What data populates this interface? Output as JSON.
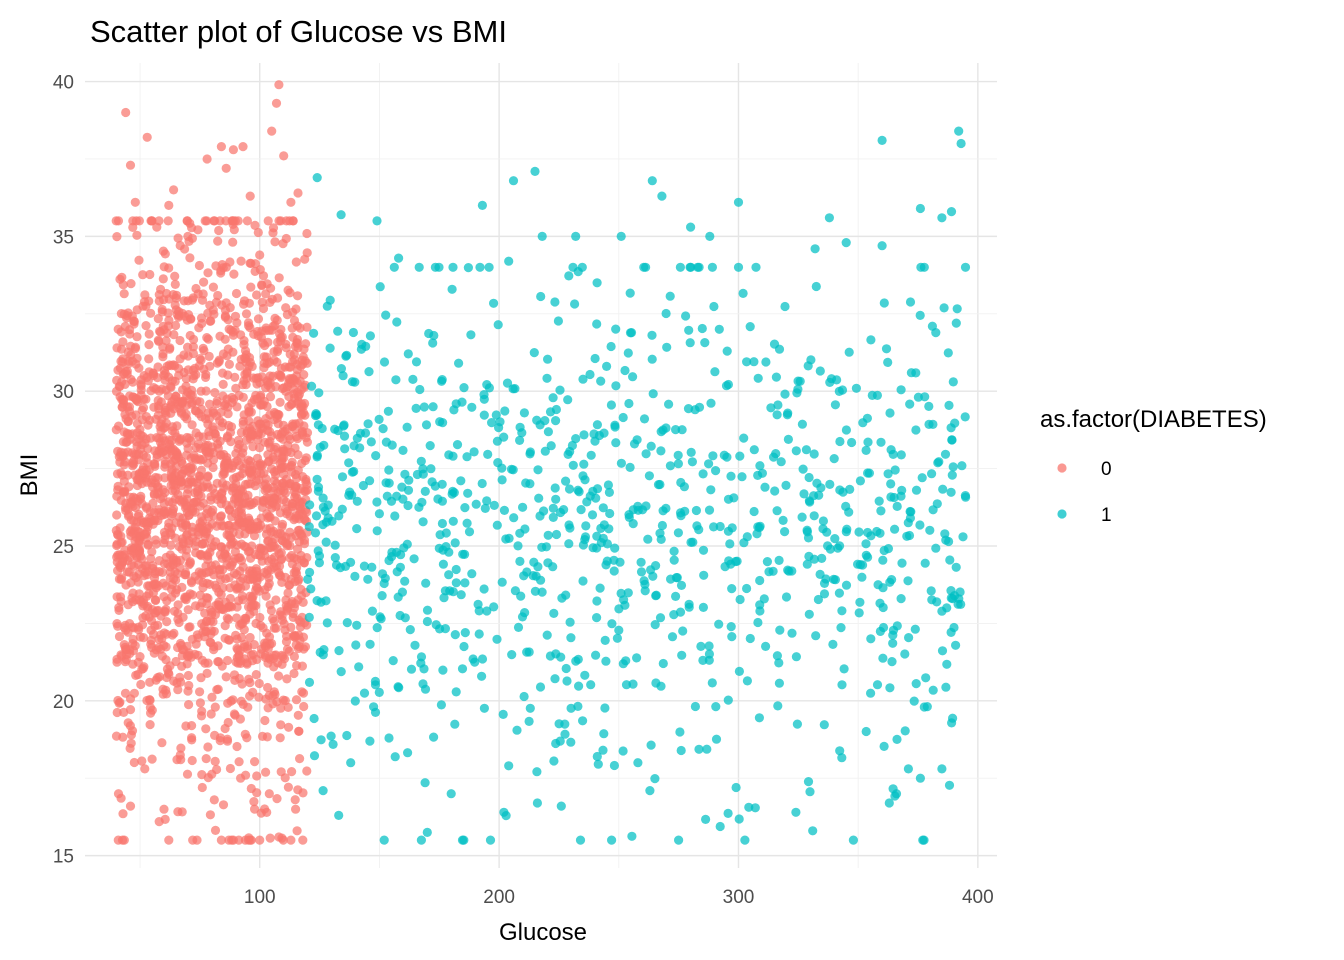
{
  "chart_data": {
    "type": "scatter",
    "title": "Scatter plot of Glucose vs BMI",
    "xlabel": "Glucose",
    "ylabel": "BMI",
    "xlim": [
      27,
      408
    ],
    "ylim": [
      14.6,
      40.6
    ],
    "x_ticks": [
      100,
      200,
      300,
      400
    ],
    "x_tick_labels": [
      "100",
      "200",
      "300",
      "400"
    ],
    "y_ticks": [
      15,
      20,
      25,
      30,
      35,
      40
    ],
    "y_tick_labels": [
      "15",
      "20",
      "25",
      "30",
      "35",
      "40"
    ],
    "grid": true,
    "legend": {
      "title": "as.factor(DIABETES)",
      "position": "right",
      "entries": [
        "0",
        "1"
      ]
    },
    "series": [
      {
        "name": "0",
        "color": "#F8766D",
        "x_range": [
          40,
          120
        ],
        "y_range": [
          15.5,
          40
        ],
        "approx_count": 2200,
        "points": [
          [
            44,
            39.0
          ],
          [
            108,
            39.9
          ],
          [
            107,
            39.3
          ],
          [
            53,
            38.2
          ],
          [
            93,
            37.9
          ],
          [
            89,
            37.8
          ],
          [
            84,
            37.9
          ],
          [
            105,
            38.4
          ],
          [
            46,
            37.3
          ],
          [
            78,
            37.5
          ],
          [
            86,
            37.2
          ],
          [
            110,
            37.6
          ],
          [
            116,
            36.4
          ],
          [
            64,
            36.5
          ],
          [
            62,
            36.0
          ],
          [
            48,
            36.1
          ],
          [
            41,
            35.5
          ],
          [
            113,
            36.1
          ],
          [
            96,
            36.3
          ],
          [
            57,
            35.3
          ],
          [
            100,
            34.4
          ],
          [
            70,
            35.0
          ],
          [
            41,
            17.0
          ],
          [
            46,
            16.6
          ],
          [
            58,
            16.1
          ],
          [
            62,
            15.5
          ],
          [
            72,
            15.5
          ],
          [
            84,
            15.5
          ],
          [
            89,
            15.5
          ],
          [
            94,
            15.5
          ],
          [
            96,
            15.5
          ],
          [
            100,
            15.5
          ],
          [
            108,
            15.6
          ],
          [
            113,
            15.5
          ],
          [
            118,
            15.5
          ],
          [
            115,
            16.5
          ],
          [
            60,
            16.5
          ],
          [
            76,
            17.2
          ],
          [
            92,
            17.5
          ],
          [
            104,
            17.0
          ],
          [
            52,
            17.8
          ],
          [
            67,
            18.1
          ],
          [
            81,
            16.8
          ]
        ]
      },
      {
        "name": "1",
        "color": "#00BFC4",
        "x_range": [
          120,
          395
        ],
        "y_range": [
          15.5,
          38.5
        ],
        "approx_count": 1000,
        "points": [
          [
            392,
            38.4
          ],
          [
            393,
            38.0
          ],
          [
            360,
            38.1
          ],
          [
            215,
            37.1
          ],
          [
            206,
            36.8
          ],
          [
            264,
            36.8
          ],
          [
            124,
            36.9
          ],
          [
            268,
            36.3
          ],
          [
            300,
            36.1
          ],
          [
            193,
            36.0
          ],
          [
            376,
            35.9
          ],
          [
            389,
            35.8
          ],
          [
            385,
            35.6
          ],
          [
            134,
            35.7
          ],
          [
            149,
            35.5
          ],
          [
            280,
            35.3
          ],
          [
            338,
            35.6
          ],
          [
            232,
            35.0
          ],
          [
            251,
            35.0
          ],
          [
            218,
            35.0
          ],
          [
            288,
            35.0
          ],
          [
            345,
            34.8
          ],
          [
            360,
            34.7
          ],
          [
            332,
            34.6
          ],
          [
            204,
            34.2
          ],
          [
            158,
            34.3
          ],
          [
            292,
            32.0
          ],
          [
            381,
            32.1
          ],
          [
            391,
            32.2
          ],
          [
            152,
            15.5
          ],
          [
            247,
            15.5
          ],
          [
            275,
            15.5
          ],
          [
            348,
            15.5
          ],
          [
            377,
            15.5
          ],
          [
            234,
            15.5
          ],
          [
            216,
            16.7
          ],
          [
            202,
            16.4
          ],
          [
            226,
            16.6
          ],
          [
            133,
            16.3
          ],
          [
            263,
            17.1
          ],
          [
            299,
            17.2
          ],
          [
            324,
            16.4
          ],
          [
            331,
            15.8
          ],
          [
            363,
            16.7
          ],
          [
            366,
            17.0
          ],
          [
            371,
            17.8
          ],
          [
            376,
            17.5
          ],
          [
            385,
            17.8
          ],
          [
            204,
            17.9
          ],
          [
            180,
            17.0
          ],
          [
            138,
            18.0
          ],
          [
            154,
            18.8
          ],
          [
            146,
            18.7
          ],
          [
            258,
            18.0
          ],
          [
            241,
            18.2
          ]
        ]
      }
    ]
  }
}
